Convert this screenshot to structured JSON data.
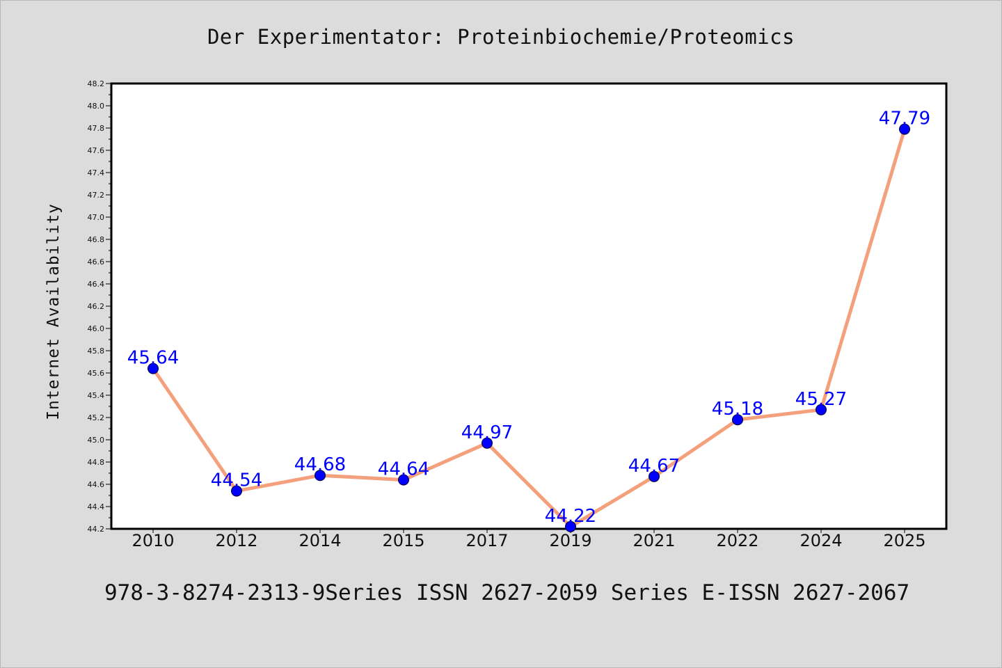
{
  "header": {
    "title": "Der Experimentator: Proteinbiochemie/Proteomics"
  },
  "footer": {
    "text": "978-3-8274-2313-9Series ISSN 2627-2059 Series E-ISSN 2627-2067"
  },
  "colors": {
    "background": "#dcdcdc",
    "plot_background": "#ffffff",
    "line": "#f4a07c",
    "marker": "#0000ff",
    "data_label": "#0000ff"
  },
  "chart_data": {
    "type": "line",
    "title": "Der Experimentator: Proteinbiochemie/Proteomics",
    "xlabel": "",
    "ylabel": "Internet Availability",
    "categories": [
      "2010",
      "2012",
      "2014",
      "2015",
      "2017",
      "2019",
      "2021",
      "2022",
      "2024",
      "2025"
    ],
    "series": [
      {
        "values": [
          45.64,
          44.54,
          44.68,
          44.64,
          44.97,
          44.22,
          44.67,
          45.18,
          45.27,
          47.79
        ],
        "labels": [
          "45.64",
          "44.54",
          "44.68",
          "44.64",
          "44.97",
          "44.22",
          "44.67",
          "45.18",
          "45.27",
          "47.79"
        ]
      }
    ],
    "ylim": [
      44.2,
      48.2
    ],
    "y_ticks": [
      "44.2",
      "44.4",
      "44.6",
      "44.8",
      "45.0",
      "45.2",
      "45.4",
      "45.6",
      "45.8",
      "46.0",
      "46.2",
      "46.4",
      "46.6",
      "46.8",
      "47.0",
      "47.2",
      "47.4",
      "47.6",
      "47.8",
      "48.0",
      "48.2"
    ],
    "grid": false,
    "legend": "none"
  }
}
